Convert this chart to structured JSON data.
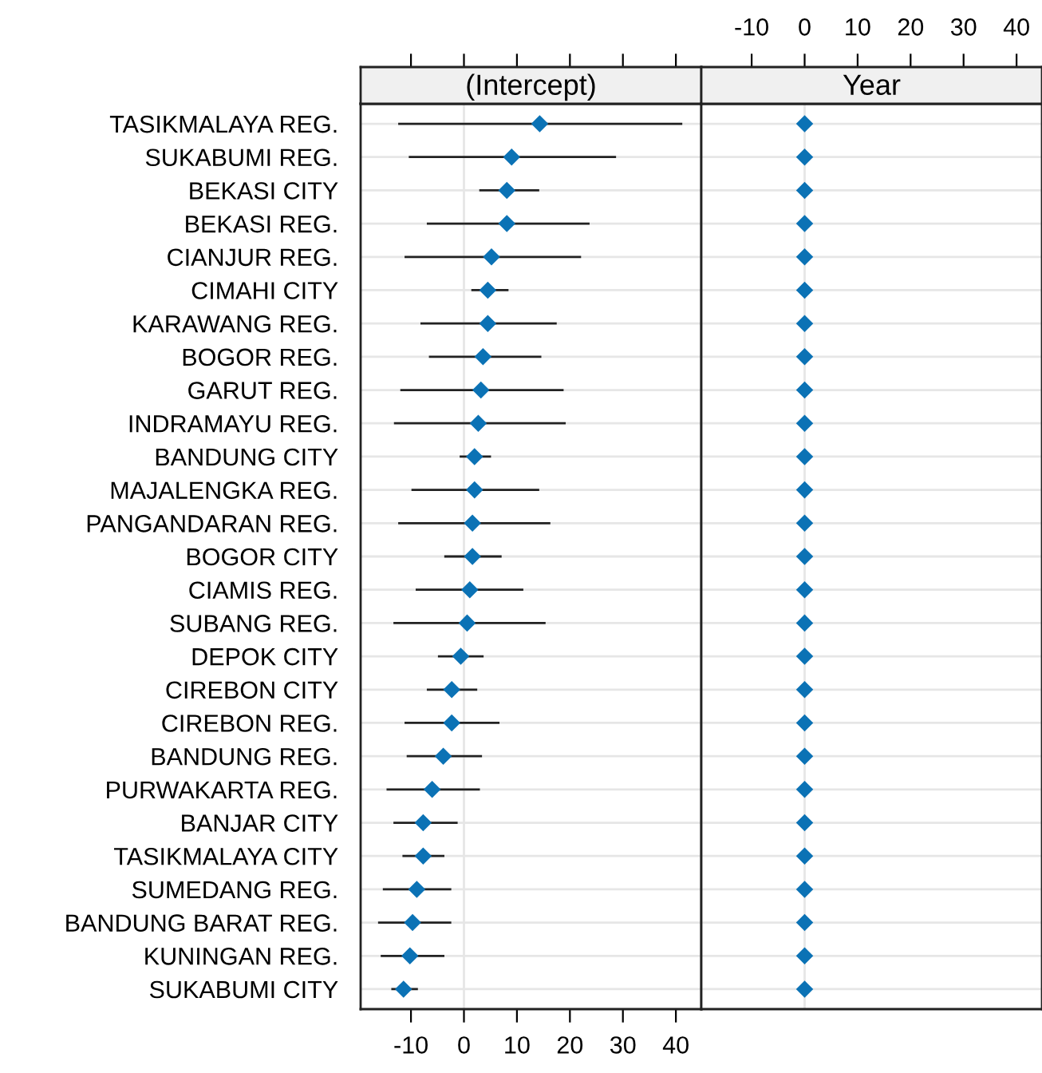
{
  "chart_data": [
    {
      "type": "scatter",
      "orientation": "horizontal",
      "title": "(Intercept)",
      "categories": [
        "TASIKMALAYA REG.",
        "SUKABUMI REG.",
        "BEKASI CITY",
        "BEKASI REG.",
        "CIANJUR REG.",
        "CIMAHI CITY",
        "KARAWANG REG.",
        "BOGOR REG.",
        "GARUT REG.",
        "INDRAMAYU REG.",
        "BANDUNG CITY",
        "MAJALENGKA REG.",
        "PANGANDARAN REG.",
        "BOGOR CITY",
        "CIAMIS REG.",
        "SUBANG REG.",
        "DEPOK CITY",
        "CIREBON CITY",
        "CIREBON REG.",
        "BANDUNG REG.",
        "PURWAKARTA REG.",
        "BANJAR CITY",
        "TASIKMALAYA CITY",
        "SUMEDANG REG.",
        "BANDUNG BARAT REG.",
        "KUNINGAN REG.",
        "SUKABUMI CITY"
      ],
      "series": [
        {
          "color": "#0b72b5",
          "values": [
            14.3,
            9.0,
            8.1,
            8.1,
            5.2,
            4.5,
            4.5,
            3.6,
            3.2,
            2.7,
            2.0,
            2.0,
            1.6,
            1.6,
            1.1,
            0.6,
            -0.6,
            -2.3,
            -2.3,
            -3.9,
            -6.0,
            -7.7,
            -7.7,
            -8.9,
            -9.7,
            -10.2,
            -11.4
          ],
          "errors": [
            [
              -12.2,
              41.0
            ],
            [
              -10.2,
              28.5
            ],
            [
              3.1,
              14.0
            ],
            [
              -6.8,
              23.5
            ],
            [
              -11.0,
              21.9
            ],
            [
              1.6,
              8.2
            ],
            [
              -8.0,
              17.3
            ],
            [
              -6.4,
              14.4
            ],
            [
              -11.8,
              18.6
            ],
            [
              -13.0,
              19.0
            ],
            [
              -0.6,
              4.9
            ],
            [
              -9.7,
              14.0
            ],
            [
              -12.2,
              16.1
            ],
            [
              -3.5,
              6.9
            ],
            [
              -8.9,
              11.0
            ],
            [
              -13.1,
              15.2
            ],
            [
              -4.7,
              3.5
            ],
            [
              -6.8,
              2.3
            ],
            [
              -11.0,
              6.5
            ],
            [
              -10.6,
              3.2
            ],
            [
              -14.4,
              2.8
            ],
            [
              -13.1,
              -1.4
            ],
            [
              -11.4,
              -3.9
            ],
            [
              -15.1,
              -2.6
            ],
            [
              -16.0,
              -2.6
            ],
            [
              -15.5,
              -3.9
            ],
            [
              -13.5,
              -8.9
            ]
          ]
        }
      ],
      "xlim": [
        -19.5,
        44.8
      ],
      "xticks": [
        -10,
        0,
        10,
        20,
        30,
        40
      ],
      "ref_lines": [
        {
          "axis": "x",
          "value": 0,
          "color": "#e6e6e6"
        }
      ],
      "grid": "y",
      "marker": "diamond"
    },
    {
      "type": "scatter",
      "orientation": "horizontal",
      "title": "Year",
      "categories": [
        null,
        null,
        null,
        null,
        null,
        null,
        null,
        null,
        null,
        null,
        null,
        null,
        null,
        null,
        null,
        null,
        null,
        null,
        null,
        null,
        null,
        null,
        null,
        null,
        null,
        null,
        null
      ],
      "series": [
        {
          "color": "#0b72b5",
          "values": [
            0,
            0,
            0,
            0,
            0,
            0,
            0,
            0,
            0,
            0,
            0,
            0,
            0,
            0,
            0,
            0,
            0,
            0,
            0,
            0,
            0,
            0,
            0,
            0,
            0,
            0,
            0
          ]
        }
      ],
      "xlim": [
        -19.5,
        44.8
      ],
      "xticks": [
        -10,
        0,
        10,
        20,
        30,
        40
      ],
      "ref_lines": [
        {
          "axis": "x",
          "value": 0,
          "color": "#e6e6e6"
        }
      ],
      "grid": "y",
      "marker": "diamond",
      "tick_labels": "x"
    }
  ]
}
